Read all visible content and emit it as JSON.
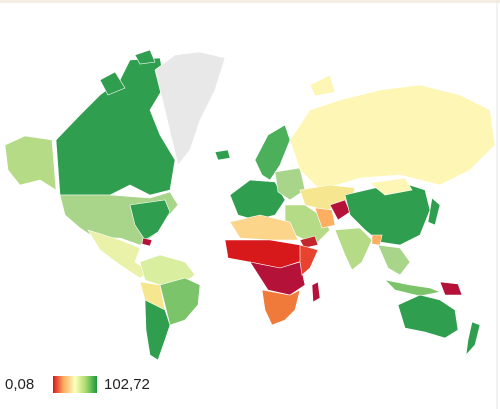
{
  "legend": {
    "min": {
      "value": 0.08,
      "label": "0,08"
    },
    "max": {
      "value": 102.72,
      "label": "102,72"
    },
    "colors": [
      "#d7191c",
      "#fdae61",
      "#ffffbf",
      "#a6d96a",
      "#1a9641"
    ]
  }
}
